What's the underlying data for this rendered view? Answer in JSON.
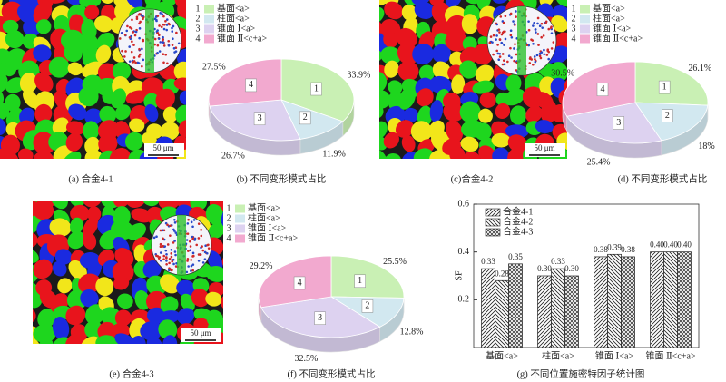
{
  "images": [
    {
      "caption": "(a) 合金4-1",
      "scale": "50 μm"
    },
    {
      "caption": "(c)合金4-2",
      "scale": "50 μm"
    },
    {
      "caption": "(e) 合金4-3",
      "scale": "50 μm"
    }
  ],
  "chart_data": [
    {
      "type": "pie",
      "caption": "(b) 不同变形模式占比",
      "keys": [
        "1",
        "2",
        "3",
        "4"
      ],
      "categories": [
        "基面<a>",
        "柱面<a>",
        "锥面 Ⅰ<a>",
        "锥面 Ⅱ<c+a>"
      ],
      "values": [
        33.9,
        11.9,
        26.7,
        27.5
      ],
      "value_labels": [
        "33.9%",
        "11.9%",
        "26.7%",
        "27.5%"
      ],
      "colors": [
        "#c9f0b4",
        "#d2e8f0",
        "#ddd2f0",
        "#f2a9cf"
      ]
    },
    {
      "type": "pie",
      "caption": "(d) 不同变形模式占比",
      "keys": [
        "1",
        "2",
        "3",
        "4"
      ],
      "categories": [
        "基面<a>",
        "柱面<a>",
        "锥面 Ⅰ<a>",
        "锥面 Ⅱ<c+a>"
      ],
      "values": [
        26.1,
        18,
        25.4,
        30.5
      ],
      "value_labels": [
        "26.1%",
        "18%",
        "25.4%",
        "30.5%"
      ],
      "colors": [
        "#c9f0b4",
        "#d2e8f0",
        "#ddd2f0",
        "#f2a9cf"
      ]
    },
    {
      "type": "pie",
      "caption": "(f) 不同变形模式占比",
      "keys": [
        "1",
        "2",
        "3",
        "4"
      ],
      "categories": [
        "基面<a>",
        "柱面<a>",
        "锥面 Ⅰ<a>",
        "锥面 Ⅱ<c+a>"
      ],
      "values": [
        25.5,
        12.8,
        32.5,
        29.2
      ],
      "value_labels": [
        "25.5%",
        "12.8%",
        "32.5%",
        "29.2%"
      ],
      "colors": [
        "#c9f0b4",
        "#d2e8f0",
        "#ddd2f0",
        "#f2a9cf"
      ]
    },
    {
      "type": "bar",
      "caption": "(g) 不同位置施密特因子统计图",
      "ylabel": "SF",
      "categories": [
        "基面<a>",
        "柱面<a>",
        "锥面 Ⅰ<a>",
        "锥面 Ⅱ<c+a>"
      ],
      "series": [
        {
          "name": "合金4-1",
          "pattern": "diagonal-up",
          "values": [
            0.33,
            0.3,
            0.38,
            0.4
          ],
          "value_labels": [
            "0.33",
            "0.30",
            "0.38",
            "0.40"
          ]
        },
        {
          "name": "合金4-2",
          "pattern": "diagonal-down",
          "values": [
            0.28,
            0.33,
            0.39,
            0.4
          ],
          "value_labels": [
            "0.28",
            "0.33",
            "0.39",
            "0.40"
          ]
        },
        {
          "name": "合金4-3",
          "pattern": "crosshatch",
          "values": [
            0.35,
            0.3,
            0.38,
            0.4
          ],
          "value_labels": [
            "0.35",
            "0.30",
            "0.38",
            "0.40"
          ]
        }
      ],
      "ylim": [
        0,
        0.6
      ],
      "yticks": [
        0.2,
        0.4,
        0.6
      ],
      "legend": "upper left"
    }
  ]
}
